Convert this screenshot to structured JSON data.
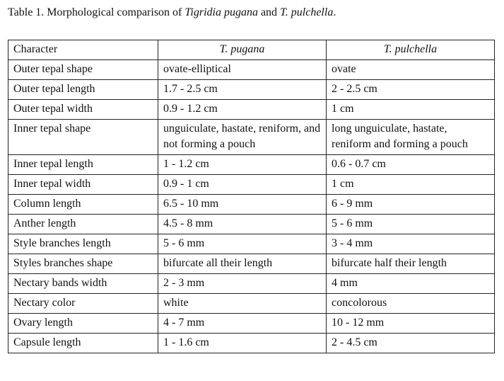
{
  "caption": {
    "lead": "Table 1. Morphological comparison of ",
    "species1": "Tigridia pugana",
    "joiner": " and ",
    "species2": "T. pulchella",
    "end": "."
  },
  "table": {
    "header": [
      "Character",
      "T. pugana",
      "T. pulchella"
    ],
    "rows": [
      [
        "Outer tepal shape",
        "ovate-elliptical",
        "ovate"
      ],
      [
        "Outer tepal length",
        "1.7 - 2.5 cm",
        "2 - 2.5 cm"
      ],
      [
        "Outer tepal width",
        "0.9 - 1.2 cm",
        "1 cm"
      ],
      [
        "Inner tepal shape",
        "unguiculate, hastate, reniform, and not forming a pouch",
        "long unguiculate, hastate, reniform and forming a pouch"
      ],
      [
        "Inner tepal length",
        "1 - 1.2 cm",
        "0.6 - 0.7 cm"
      ],
      [
        "Inner tepal width",
        "0.9 - 1 cm",
        "1 cm"
      ],
      [
        "Column length",
        "6.5 - 10 mm",
        "6 - 9 mm"
      ],
      [
        "Anther length",
        "4.5 - 8 mm",
        "5 - 6 mm"
      ],
      [
        "Style branches length",
        "5 - 6 mm",
        "3 - 4 mm"
      ],
      [
        "Styles branches shape",
        "bifurcate all their length",
        "bifurcate half their length"
      ],
      [
        "Nectary bands width",
        "2 - 3 mm",
        "4 mm"
      ],
      [
        "Nectary color",
        "white",
        "concolorous"
      ],
      [
        "Ovary length",
        "4 - 7 mm",
        "10 - 12 mm"
      ],
      [
        "Capsule length",
        "1 - 1.6 cm",
        "2 - 4.5 cm"
      ]
    ]
  }
}
